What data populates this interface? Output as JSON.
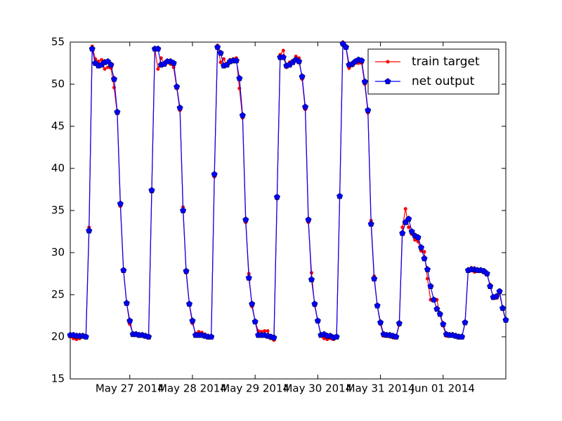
{
  "chart_data": {
    "type": "line",
    "xlim": [
      0,
      139
    ],
    "xticks": [
      {
        "value": 19,
        "label": "May 27 2014"
      },
      {
        "value": 39,
        "label": "May 28 2014"
      },
      {
        "value": 59,
        "label": "May 29 2014"
      },
      {
        "value": 79,
        "label": "May 30 2014"
      },
      {
        "value": 99,
        "label": "May 31 2014"
      },
      {
        "value": 119,
        "label": "Jun 01 2014"
      }
    ],
    "ylim": [
      15,
      55
    ],
    "yticks": [
      15,
      20,
      25,
      30,
      35,
      40,
      45,
      50,
      55
    ],
    "grid": false,
    "legend": "upper right",
    "series": [
      {
        "name": "train target",
        "color": "#ff0000",
        "marker": "dot",
        "values": [
          20.0,
          19.8,
          19.7,
          19.8,
          20.0,
          20.1,
          33.0,
          54.5,
          53.0,
          52.7,
          52.9,
          51.8,
          52.0,
          51.9,
          49.6,
          46.5,
          35.5,
          27.8,
          24.0,
          21.5,
          20.4,
          20.3,
          20.3,
          20.2,
          20.1,
          20.0,
          37.2,
          54.2,
          51.8,
          53.1,
          52.4,
          52.6,
          52.4,
          52.0,
          49.5,
          46.9,
          35.4,
          27.6,
          23.8,
          21.6,
          20.4,
          20.6,
          20.5,
          20.3,
          20.1,
          19.9,
          39.0,
          54.6,
          52.6,
          53.0,
          52.2,
          52.9,
          53.0,
          53.1,
          49.5,
          46.0,
          33.6,
          27.5,
          23.6,
          21.8,
          20.7,
          20.6,
          20.7,
          20.7,
          19.8,
          19.6,
          36.4,
          53.5,
          54.0,
          52.0,
          52.6,
          52.8,
          53.3,
          53.1,
          50.6,
          47.0,
          33.6,
          27.6,
          23.7,
          21.8,
          20.2,
          19.8,
          19.7,
          19.8,
          19.7,
          20.1,
          36.6,
          55.0,
          54.3,
          51.9,
          52.2,
          52.5,
          52.5,
          52.5,
          50.0,
          46.6,
          33.8,
          27.2,
          23.6,
          21.5,
          20.1,
          20.2,
          20.0,
          19.9,
          20.0,
          21.4,
          33.0,
          35.2,
          33.0,
          32.2,
          31.5,
          31.3,
          30.2,
          30.1,
          26.9,
          24.4,
          24.3,
          24.4,
          22.6,
          21.3,
          20.1,
          20.1,
          20.2,
          20.2,
          20.0,
          20.0,
          21.6,
          28.0,
          28.2,
          27.7,
          27.8,
          28.0,
          27.6,
          27.4,
          26.2,
          24.6,
          24.6,
          25.2,
          23.3,
          21.9
        ]
      },
      {
        "name": "net output",
        "color": "#0000ff",
        "marker": "pentagon",
        "values": [
          20.2,
          20.2,
          20.1,
          20.1,
          20.1,
          20.0,
          32.6,
          54.2,
          52.5,
          52.2,
          52.3,
          52.6,
          52.7,
          52.3,
          50.6,
          46.7,
          35.8,
          27.9,
          24.0,
          21.9,
          20.3,
          20.3,
          20.2,
          20.2,
          20.1,
          20.0,
          37.4,
          54.2,
          54.2,
          52.3,
          52.4,
          52.7,
          52.7,
          52.5,
          49.7,
          47.2,
          35.0,
          27.8,
          23.9,
          21.9,
          20.2,
          20.2,
          20.2,
          20.1,
          20.0,
          20.0,
          39.3,
          54.4,
          53.7,
          52.2,
          52.3,
          52.7,
          52.8,
          52.8,
          50.7,
          46.3,
          33.9,
          27.0,
          23.9,
          21.8,
          20.2,
          20.2,
          20.2,
          20.1,
          20.0,
          19.9,
          36.6,
          53.2,
          53.2,
          52.2,
          52.3,
          52.6,
          52.9,
          52.7,
          50.9,
          47.3,
          33.9,
          26.8,
          23.9,
          21.9,
          20.2,
          20.3,
          20.1,
          20.1,
          19.9,
          20.0,
          36.7,
          54.8,
          54.4,
          52.3,
          52.4,
          52.7,
          52.9,
          52.8,
          50.3,
          46.9,
          33.4,
          26.9,
          23.7,
          21.7,
          20.3,
          20.2,
          20.2,
          20.1,
          20.0,
          21.6,
          32.3,
          33.6,
          34.0,
          32.5,
          32.0,
          31.8,
          30.6,
          29.3,
          28.0,
          26.0,
          24.4,
          23.3,
          22.7,
          21.5,
          20.3,
          20.2,
          20.2,
          20.1,
          20.0,
          20.0,
          21.7,
          27.9,
          28.0,
          28.0,
          27.9,
          27.9,
          27.8,
          27.5,
          26.0,
          24.7,
          24.8,
          25.4,
          23.4,
          22.0
        ]
      }
    ]
  }
}
